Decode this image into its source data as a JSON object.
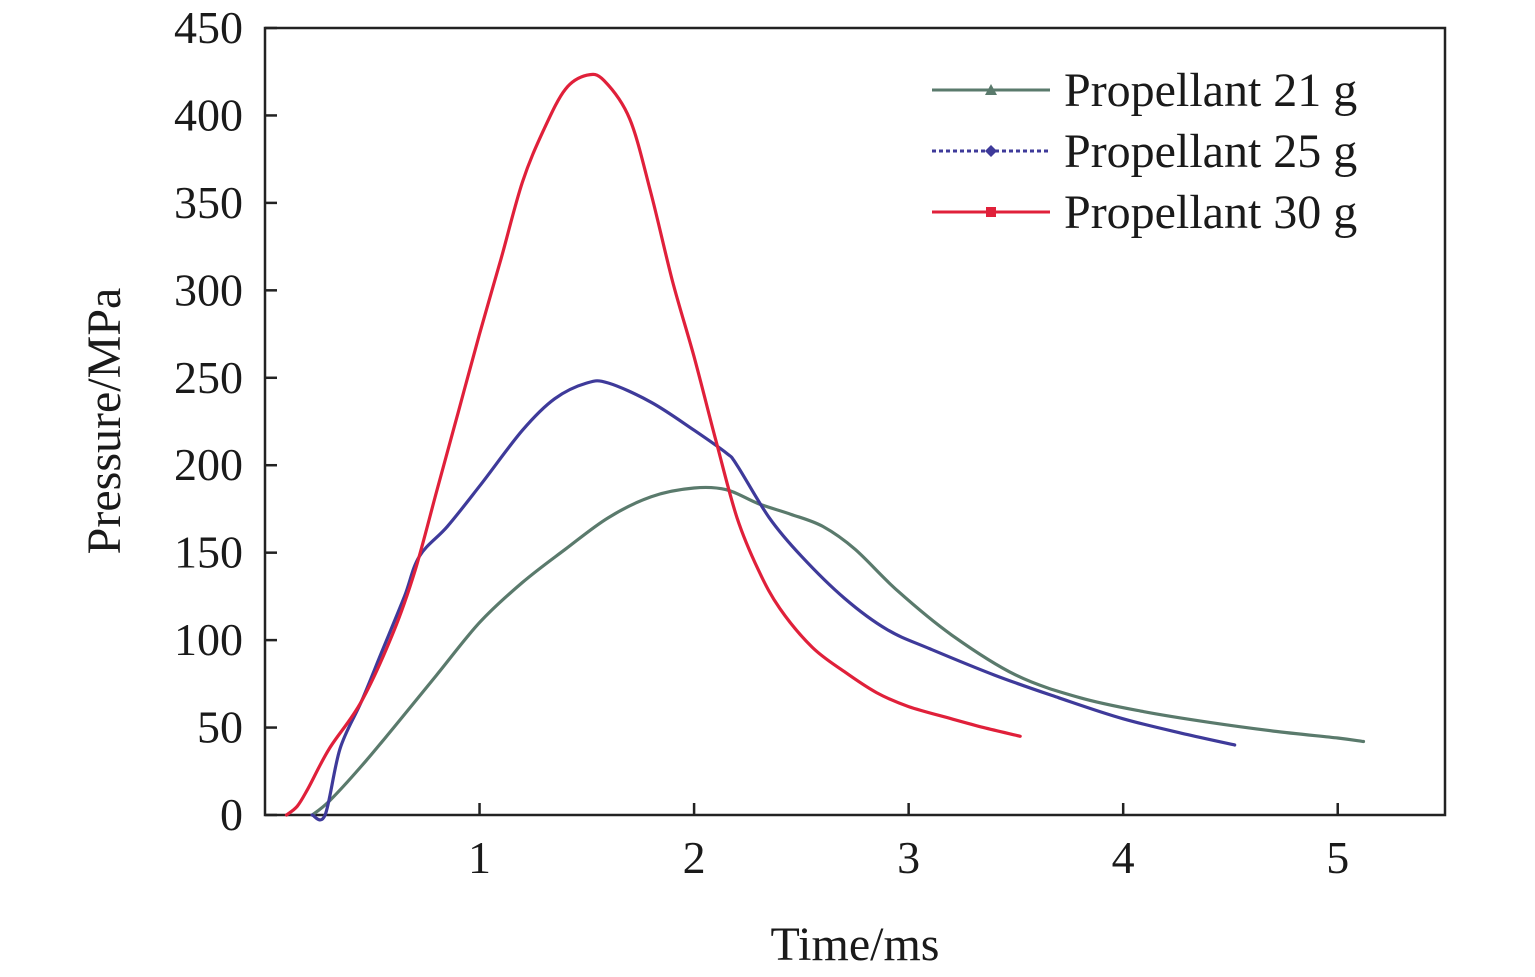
{
  "chart_data": {
    "type": "line",
    "title": "",
    "xlabel": "Time/ms",
    "ylabel": "Pressure/MPa",
    "xlim": [
      0,
      5.5
    ],
    "ylim": [
      0,
      450
    ],
    "xticks": [
      1,
      2,
      3,
      4,
      5
    ],
    "yticks": [
      0,
      50,
      100,
      150,
      200,
      250,
      300,
      350,
      400,
      450
    ],
    "grid": false,
    "legend_position": "top-right",
    "series": [
      {
        "name": "Propellant 21 g",
        "color": "#5a7a6c",
        "marker": "triangle",
        "points": [
          [
            0.22,
            0
          ],
          [
            0.3,
            8
          ],
          [
            0.45,
            28
          ],
          [
            0.6,
            50
          ],
          [
            0.8,
            80
          ],
          [
            1.0,
            110
          ],
          [
            1.2,
            133
          ],
          [
            1.4,
            152
          ],
          [
            1.6,
            170
          ],
          [
            1.8,
            182
          ],
          [
            2.0,
            187
          ],
          [
            2.15,
            186
          ],
          [
            2.3,
            178
          ],
          [
            2.45,
            172
          ],
          [
            2.6,
            165
          ],
          [
            2.75,
            152
          ],
          [
            2.95,
            128
          ],
          [
            3.2,
            103
          ],
          [
            3.5,
            80
          ],
          [
            3.8,
            67
          ],
          [
            4.1,
            59
          ],
          [
            4.4,
            53
          ],
          [
            4.7,
            48
          ],
          [
            5.0,
            44
          ],
          [
            5.12,
            42
          ]
        ]
      },
      {
        "name": "Propellant 25 g",
        "color": "#3e3a9a",
        "marker": "diamond",
        "points": [
          [
            0.22,
            0
          ],
          [
            0.28,
            0
          ],
          [
            0.35,
            38
          ],
          [
            0.45,
            65
          ],
          [
            0.55,
            95
          ],
          [
            0.65,
            125
          ],
          [
            0.72,
            148
          ],
          [
            0.85,
            165
          ],
          [
            1.0,
            188
          ],
          [
            1.2,
            220
          ],
          [
            1.35,
            238
          ],
          [
            1.5,
            247
          ],
          [
            1.6,
            247
          ],
          [
            1.8,
            236
          ],
          [
            2.0,
            220
          ],
          [
            2.15,
            207
          ],
          [
            2.2,
            200
          ],
          [
            2.35,
            170
          ],
          [
            2.5,
            148
          ],
          [
            2.7,
            124
          ],
          [
            2.9,
            106
          ],
          [
            3.1,
            95
          ],
          [
            3.4,
            80
          ],
          [
            3.7,
            67
          ],
          [
            4.0,
            55
          ],
          [
            4.3,
            46
          ],
          [
            4.52,
            40
          ]
        ]
      },
      {
        "name": "Propellant 30 g",
        "color": "#e0203a",
        "marker": "square",
        "points": [
          [
            0.1,
            0
          ],
          [
            0.15,
            5
          ],
          [
            0.2,
            15
          ],
          [
            0.3,
            38
          ],
          [
            0.45,
            65
          ],
          [
            0.6,
            105
          ],
          [
            0.7,
            140
          ],
          [
            0.8,
            185
          ],
          [
            0.9,
            230
          ],
          [
            1.0,
            275
          ],
          [
            1.1,
            318
          ],
          [
            1.2,
            362
          ],
          [
            1.3,
            392
          ],
          [
            1.4,
            415
          ],
          [
            1.5,
            423
          ],
          [
            1.58,
            420
          ],
          [
            1.7,
            398
          ],
          [
            1.8,
            355
          ],
          [
            1.9,
            305
          ],
          [
            2.0,
            262
          ],
          [
            2.1,
            215
          ],
          [
            2.2,
            170
          ],
          [
            2.3,
            140
          ],
          [
            2.4,
            118
          ],
          [
            2.55,
            96
          ],
          [
            2.7,
            82
          ],
          [
            2.85,
            70
          ],
          [
            3.0,
            62
          ],
          [
            3.2,
            55
          ],
          [
            3.35,
            50
          ],
          [
            3.52,
            45
          ]
        ]
      }
    ]
  }
}
